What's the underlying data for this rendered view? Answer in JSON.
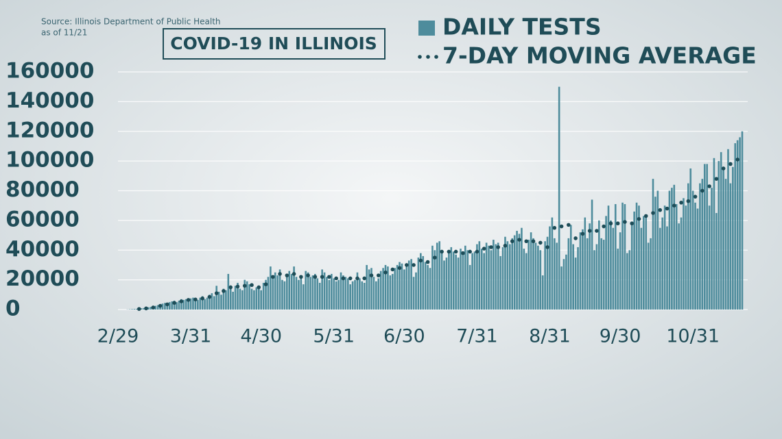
{
  "chart_data": {
    "type": "bar",
    "title": "COVID-19 IN ILLINOIS",
    "source": "Source: Illinois Department of Public Health",
    "note": "as of 11/21",
    "categories": [
      "2/29",
      null,
      null,
      null,
      null,
      null,
      null,
      null,
      null,
      null,
      null,
      null,
      null,
      null,
      null,
      null,
      null,
      null,
      null,
      null,
      null,
      null,
      null,
      null,
      null,
      null,
      null,
      null,
      null,
      null,
      null,
      "3/31",
      null,
      null,
      null,
      null,
      null,
      null,
      null,
      null,
      null,
      null,
      null,
      null,
      null,
      null,
      null,
      null,
      null,
      null,
      null,
      null,
      null,
      null,
      null,
      null,
      null,
      null,
      null,
      null,
      null,
      "4/30",
      null,
      null,
      null,
      null,
      null,
      null,
      null,
      null,
      null,
      null,
      null,
      null,
      null,
      null,
      null,
      null,
      null,
      null,
      null,
      null,
      null,
      null,
      null,
      null,
      null,
      null,
      null,
      null,
      null,
      null,
      "5/31",
      null,
      null,
      null,
      null,
      null,
      null,
      null,
      null,
      null,
      null,
      null,
      null,
      null,
      null,
      null,
      null,
      null,
      null,
      null,
      null,
      null,
      null,
      null,
      null,
      null,
      null,
      null,
      null,
      null,
      "6/30",
      null,
      null,
      null,
      null,
      null,
      null,
      null,
      null,
      null,
      null,
      null,
      null,
      null,
      null,
      null,
      null,
      null,
      null,
      null,
      null,
      null,
      null,
      null,
      null,
      null,
      null,
      null,
      null,
      null,
      null,
      "7/31",
      null,
      null,
      null,
      null,
      null,
      null,
      null,
      null,
      null,
      null,
      null,
      null,
      null,
      null,
      null,
      null,
      null,
      null,
      null,
      null,
      null,
      null,
      null,
      null,
      null,
      null,
      null,
      null,
      null,
      null,
      "8/31",
      null,
      null,
      null,
      null,
      null,
      null,
      null,
      null,
      null,
      null,
      null,
      null,
      null,
      null,
      null,
      null,
      null,
      null,
      null,
      null,
      null,
      null,
      null,
      null,
      null,
      null,
      null,
      null,
      null,
      "9/30",
      null,
      null,
      null,
      null,
      null,
      null,
      null,
      null,
      null,
      null,
      null,
      null,
      null,
      null,
      null,
      null,
      null,
      null,
      null,
      null,
      null,
      null,
      null,
      null,
      null,
      null,
      null,
      null,
      null,
      null,
      "10/31",
      null,
      null,
      null,
      null,
      null,
      null,
      null,
      null,
      null,
      null,
      null,
      null,
      null,
      null,
      null,
      null,
      null,
      null,
      null,
      null,
      null
    ],
    "series": [
      {
        "name": "DAILY TESTS",
        "type": "bar",
        "color": "#4e8c9c",
        "values": [
          0,
          0,
          0,
          0,
          100,
          200,
          300,
          400,
          500,
          600,
          800,
          1000,
          1200,
          1500,
          1800,
          2000,
          2500,
          3000,
          3500,
          4000,
          4500,
          4000,
          5000,
          5500,
          6000,
          5000,
          6000,
          7000,
          6500,
          7000,
          6000,
          7500,
          8000,
          7000,
          6500,
          8000,
          9000,
          7000,
          8000,
          10000,
          11000,
          9000,
          16000,
          12000,
          10000,
          14000,
          13000,
          24000,
          15000,
          12000,
          16000,
          18000,
          14000,
          13000,
          20000,
          19000,
          17000,
          14000,
          13000,
          15000,
          14000,
          13000,
          18000,
          20000,
          22000,
          29000,
          21000,
          25000,
          23000,
          27000,
          20000,
          19000,
          22000,
          26000,
          24000,
          29000,
          22000,
          20000,
          21000,
          17000,
          26000,
          25000,
          22000,
          23000,
          24000,
          21000,
          18000,
          27000,
          25000,
          22000,
          20000,
          24000,
          21000,
          19000,
          20000,
          25000,
          23000,
          22000,
          21000,
          17000,
          19000,
          20000,
          25000,
          21000,
          19000,
          18000,
          30000,
          27000,
          28000,
          22000,
          19000,
          21000,
          26000,
          28000,
          30000,
          29000,
          23000,
          24000,
          28000,
          30000,
          32000,
          31000,
          27000,
          30000,
          33000,
          34000,
          22000,
          25000,
          35000,
          38000,
          36000,
          32000,
          30000,
          28000,
          43000,
          40000,
          45000,
          46000,
          38000,
          33000,
          35000,
          40000,
          42000,
          39000,
          37000,
          35000,
          41000,
          38000,
          43000,
          40000,
          30000,
          38000,
          39000,
          44000,
          46000,
          41000,
          38000,
          45000,
          43000,
          40000,
          47000,
          44000,
          45000,
          36000,
          42000,
          49000,
          46000,
          44000,
          48000,
          50000,
          53000,
          51000,
          55000,
          41000,
          38000,
          47000,
          52000,
          48000,
          45000,
          43000,
          40000,
          23000,
          46000,
          49000,
          56000,
          62000,
          48000,
          45000,
          150000,
          29000,
          34000,
          37000,
          48000,
          57000,
          44000,
          35000,
          42000,
          52000,
          54000,
          62000,
          48000,
          58000,
          74000,
          40000,
          44000,
          60000,
          48000,
          47000,
          63000,
          70000,
          60000,
          55000,
          71000,
          41000,
          52000,
          72000,
          71000,
          38000,
          40000,
          58000,
          66000,
          72000,
          70000,
          55000,
          63000,
          62000,
          45000,
          48000,
          88000,
          76000,
          80000,
          55000,
          62000,
          70000,
          56000,
          80000,
          82000,
          84000,
          71000,
          58000,
          62000,
          75000,
          70000,
          85000,
          95000,
          80000,
          72000,
          68000,
          85000,
          88000,
          98000,
          98000,
          70000,
          82000,
          102000,
          65000,
          100000,
          106000,
          95000,
          88000,
          108000,
          85000,
          96000,
          112000,
          114000,
          116000,
          120000
        ]
      },
      {
        "name": "7-DAY MOVING AVERAGE",
        "type": "dots",
        "color": "#1d4c57",
        "values": [
          null,
          null,
          null,
          null,
          null,
          null,
          null,
          null,
          null,
          400,
          null,
          null,
          800,
          null,
          null,
          1400,
          null,
          null,
          2500,
          null,
          null,
          3500,
          null,
          null,
          4500,
          null,
          null,
          5500,
          null,
          null,
          6500,
          null,
          null,
          6800,
          null,
          null,
          7500,
          null,
          null,
          8500,
          null,
          null,
          11000,
          null,
          null,
          12500,
          null,
          null,
          15000,
          null,
          null,
          15500,
          null,
          null,
          16000,
          null,
          null,
          16500,
          null,
          null,
          15000,
          null,
          null,
          17000,
          null,
          null,
          22000,
          null,
          null,
          24000,
          null,
          null,
          23000,
          null,
          null,
          24000,
          null,
          null,
          22000,
          null,
          null,
          23000,
          null,
          null,
          22000,
          null,
          null,
          22000,
          null,
          null,
          22000,
          null,
          null,
          21000,
          null,
          null,
          21000,
          null,
          null,
          21000,
          null,
          null,
          21000,
          null,
          null,
          21000,
          null,
          null,
          23000,
          null,
          null,
          23000,
          null,
          null,
          25000,
          null,
          null,
          27000,
          null,
          null,
          28000,
          null,
          null,
          30000,
          null,
          null,
          30000,
          null,
          null,
          33000,
          null,
          null,
          32000,
          null,
          null,
          35000,
          null,
          null,
          39000,
          null,
          null,
          39000,
          null,
          null,
          39000,
          null,
          null,
          38000,
          null,
          null,
          39000,
          null,
          null,
          39000,
          null,
          null,
          41000,
          null,
          null,
          42000,
          null,
          null,
          42000,
          null,
          null,
          43000,
          null,
          null,
          46000,
          null,
          null,
          47000,
          null,
          null,
          46000,
          null,
          null,
          46000,
          null,
          null,
          45000,
          null,
          null,
          42000,
          null,
          null,
          55000,
          null,
          null,
          56000,
          null,
          null,
          57000,
          null,
          null,
          48000,
          null,
          null,
          51000,
          null,
          null,
          53000,
          null,
          null,
          53000,
          null,
          null,
          56000,
          null,
          null,
          58000,
          null,
          null,
          58000,
          null,
          null,
          59000,
          null,
          null,
          58000,
          null,
          null,
          61000,
          null,
          null,
          63000,
          null,
          null,
          65000,
          null,
          null,
          67000,
          null,
          null,
          68000,
          null,
          null,
          70000,
          null,
          null,
          72000,
          null,
          null,
          73000,
          null,
          null,
          76000,
          null,
          null,
          80000,
          null,
          null,
          83000,
          null,
          null,
          88000,
          null,
          null,
          95000,
          null,
          null,
          98000,
          null,
          null,
          101000,
          null,
          null
        ]
      }
    ],
    "ylim": [
      0,
      160000
    ],
    "yticks": [
      0,
      20000,
      40000,
      60000,
      80000,
      100000,
      120000,
      140000,
      160000
    ],
    "grid": true
  }
}
